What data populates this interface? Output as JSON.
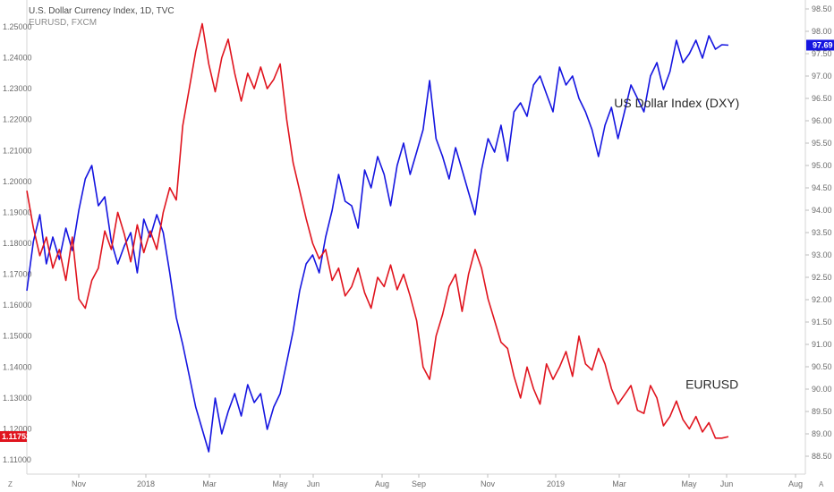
{
  "header": {
    "title": "U.S. Dollar Currency Index, 1D, TVC",
    "subtitle": "EURUSD, FXCM"
  },
  "corner_left": "Z",
  "corner_right": "A",
  "chart_data": {
    "type": "line",
    "x_ticks": [
      "Nov",
      "2018",
      "Mar",
      "May",
      "Jun",
      "Aug",
      "Sep",
      "Nov",
      "2019",
      "Mar",
      "May",
      "Jun",
      "Aug"
    ],
    "left_axis": {
      "ticks": [
        "1.25000",
        "1.24000",
        "1.23000",
        "1.22000",
        "1.21000",
        "1.20000",
        "1.19000",
        "1.18000",
        "1.17000",
        "1.16000",
        "1.15000",
        "1.14000",
        "1.13000",
        "1.12000",
        "1.11000"
      ],
      "range": [
        1.107,
        1.2585
      ],
      "last_value": "1.11752",
      "color": "#e0141e"
    },
    "right_axis": {
      "ticks": [
        "98.50",
        "98.00",
        "97.50",
        "97.00",
        "96.50",
        "96.00",
        "95.50",
        "95.00",
        "94.50",
        "94.00",
        "93.50",
        "93.00",
        "92.50",
        "92.00",
        "91.50",
        "91.00",
        "90.50",
        "90.00",
        "89.50",
        "89.00",
        "88.50"
      ],
      "range": [
        88.16,
        98.64
      ],
      "last_value": "97.69",
      "color": "#1515e0"
    },
    "series": [
      {
        "name": "US Dollar Index (DXY)",
        "axis": "right",
        "color": "#1515e0",
        "points": [
          [
            0,
            92.2
          ],
          [
            5,
            93.3
          ],
          [
            10,
            93.9
          ],
          [
            15,
            92.8
          ],
          [
            20,
            93.4
          ],
          [
            25,
            92.9
          ],
          [
            30,
            93.6
          ],
          [
            35,
            93.1
          ],
          [
            40,
            94.0
          ],
          [
            45,
            94.7
          ],
          [
            50,
            95.0
          ],
          [
            55,
            94.1
          ],
          [
            60,
            94.3
          ],
          [
            65,
            93.3
          ],
          [
            70,
            92.8
          ],
          [
            75,
            93.2
          ],
          [
            80,
            93.5
          ],
          [
            85,
            92.6
          ],
          [
            90,
            93.8
          ],
          [
            95,
            93.4
          ],
          [
            100,
            93.9
          ],
          [
            105,
            93.5
          ],
          [
            110,
            92.6
          ],
          [
            115,
            91.6
          ],
          [
            120,
            91.0
          ],
          [
            125,
            90.3
          ],
          [
            130,
            89.6
          ],
          [
            135,
            89.1
          ],
          [
            140,
            88.6
          ],
          [
            145,
            89.8
          ],
          [
            150,
            89.0
          ],
          [
            155,
            89.5
          ],
          [
            160,
            89.9
          ],
          [
            165,
            89.4
          ],
          [
            170,
            90.1
          ],
          [
            175,
            89.7
          ],
          [
            180,
            89.9
          ],
          [
            185,
            89.1
          ],
          [
            190,
            89.6
          ],
          [
            195,
            89.9
          ],
          [
            200,
            90.6
          ],
          [
            205,
            91.3
          ],
          [
            210,
            92.2
          ],
          [
            215,
            92.8
          ],
          [
            220,
            93.0
          ],
          [
            225,
            92.6
          ],
          [
            230,
            93.4
          ],
          [
            235,
            94.0
          ],
          [
            240,
            94.8
          ],
          [
            245,
            94.2
          ],
          [
            250,
            94.1
          ],
          [
            255,
            93.6
          ],
          [
            260,
            94.9
          ],
          [
            265,
            94.5
          ],
          [
            270,
            95.2
          ],
          [
            275,
            94.8
          ],
          [
            280,
            94.1
          ],
          [
            285,
            95.0
          ],
          [
            290,
            95.5
          ],
          [
            295,
            94.8
          ],
          [
            300,
            95.3
          ],
          [
            305,
            95.8
          ],
          [
            310,
            96.9
          ],
          [
            315,
            95.6
          ],
          [
            320,
            95.2
          ],
          [
            325,
            94.7
          ],
          [
            330,
            95.4
          ],
          [
            335,
            94.9
          ],
          [
            340,
            94.4
          ],
          [
            345,
            93.9
          ],
          [
            350,
            94.9
          ],
          [
            355,
            95.6
          ],
          [
            360,
            95.3
          ],
          [
            365,
            95.9
          ],
          [
            370,
            95.1
          ],
          [
            375,
            96.2
          ],
          [
            380,
            96.4
          ],
          [
            385,
            96.1
          ],
          [
            390,
            96.8
          ],
          [
            395,
            97.0
          ],
          [
            400,
            96.6
          ],
          [
            405,
            96.2
          ],
          [
            410,
            97.2
          ],
          [
            415,
            96.8
          ],
          [
            420,
            97.0
          ],
          [
            425,
            96.5
          ],
          [
            430,
            96.2
          ],
          [
            435,
            95.8
          ],
          [
            440,
            95.2
          ],
          [
            445,
            95.9
          ],
          [
            450,
            96.3
          ],
          [
            455,
            95.6
          ],
          [
            460,
            96.2
          ],
          [
            465,
            96.8
          ],
          [
            470,
            96.5
          ],
          [
            475,
            96.2
          ],
          [
            480,
            97.0
          ],
          [
            485,
            97.3
          ],
          [
            490,
            96.7
          ],
          [
            495,
            97.1
          ],
          [
            500,
            97.8
          ],
          [
            505,
            97.3
          ],
          [
            510,
            97.5
          ],
          [
            515,
            97.8
          ],
          [
            520,
            97.4
          ],
          [
            525,
            97.9
          ],
          [
            530,
            97.6
          ],
          [
            535,
            97.7
          ],
          [
            540,
            97.69
          ]
        ]
      },
      {
        "name": "EURUSD",
        "axis": "left",
        "color": "#e0141e",
        "points": [
          [
            0,
            1.197
          ],
          [
            5,
            1.185
          ],
          [
            10,
            1.176
          ],
          [
            15,
            1.182
          ],
          [
            20,
            1.172
          ],
          [
            25,
            1.178
          ],
          [
            30,
            1.168
          ],
          [
            35,
            1.182
          ],
          [
            40,
            1.162
          ],
          [
            45,
            1.159
          ],
          [
            50,
            1.168
          ],
          [
            55,
            1.172
          ],
          [
            60,
            1.184
          ],
          [
            65,
            1.178
          ],
          [
            70,
            1.19
          ],
          [
            75,
            1.183
          ],
          [
            80,
            1.174
          ],
          [
            85,
            1.186
          ],
          [
            90,
            1.177
          ],
          [
            95,
            1.184
          ],
          [
            100,
            1.178
          ],
          [
            105,
            1.19
          ],
          [
            110,
            1.198
          ],
          [
            115,
            1.194
          ],
          [
            120,
            1.218
          ],
          [
            125,
            1.23
          ],
          [
            130,
            1.242
          ],
          [
            135,
            1.251
          ],
          [
            140,
            1.238
          ],
          [
            145,
            1.229
          ],
          [
            150,
            1.24
          ],
          [
            155,
            1.246
          ],
          [
            160,
            1.235
          ],
          [
            165,
            1.226
          ],
          [
            170,
            1.235
          ],
          [
            175,
            1.23
          ],
          [
            180,
            1.237
          ],
          [
            185,
            1.23
          ],
          [
            190,
            1.233
          ],
          [
            195,
            1.238
          ],
          [
            200,
            1.22
          ],
          [
            205,
            1.206
          ],
          [
            210,
            1.197
          ],
          [
            215,
            1.188
          ],
          [
            220,
            1.18
          ],
          [
            225,
            1.175
          ],
          [
            230,
            1.178
          ],
          [
            235,
            1.168
          ],
          [
            240,
            1.172
          ],
          [
            245,
            1.163
          ],
          [
            250,
            1.166
          ],
          [
            255,
            1.172
          ],
          [
            260,
            1.164
          ],
          [
            265,
            1.159
          ],
          [
            270,
            1.169
          ],
          [
            275,
            1.166
          ],
          [
            280,
            1.173
          ],
          [
            285,
            1.165
          ],
          [
            290,
            1.17
          ],
          [
            295,
            1.163
          ],
          [
            300,
            1.155
          ],
          [
            305,
            1.14
          ],
          [
            310,
            1.136
          ],
          [
            315,
            1.15
          ],
          [
            320,
            1.157
          ],
          [
            325,
            1.166
          ],
          [
            330,
            1.17
          ],
          [
            335,
            1.158
          ],
          [
            340,
            1.17
          ],
          [
            345,
            1.178
          ],
          [
            350,
            1.172
          ],
          [
            355,
            1.162
          ],
          [
            360,
            1.155
          ],
          [
            365,
            1.148
          ],
          [
            370,
            1.146
          ],
          [
            375,
            1.137
          ],
          [
            380,
            1.13
          ],
          [
            385,
            1.14
          ],
          [
            390,
            1.133
          ],
          [
            395,
            1.128
          ],
          [
            400,
            1.141
          ],
          [
            405,
            1.136
          ],
          [
            410,
            1.14
          ],
          [
            415,
            1.145
          ],
          [
            420,
            1.137
          ],
          [
            425,
            1.15
          ],
          [
            430,
            1.141
          ],
          [
            435,
            1.139
          ],
          [
            440,
            1.146
          ],
          [
            445,
            1.141
          ],
          [
            450,
            1.133
          ],
          [
            455,
            1.128
          ],
          [
            460,
            1.131
          ],
          [
            465,
            1.134
          ],
          [
            470,
            1.126
          ],
          [
            475,
            1.125
          ],
          [
            480,
            1.134
          ],
          [
            485,
            1.13
          ],
          [
            490,
            1.121
          ],
          [
            495,
            1.124
          ],
          [
            500,
            1.129
          ],
          [
            505,
            1.123
          ],
          [
            510,
            1.12
          ],
          [
            515,
            1.124
          ],
          [
            520,
            1.119
          ],
          [
            525,
            1.122
          ],
          [
            530,
            1.117
          ],
          [
            535,
            1.117
          ],
          [
            540,
            1.1175
          ]
        ]
      }
    ],
    "annotations": [
      {
        "text": "US Dollar Index (DXY)",
        "axis": "right",
        "x": 452,
        "y": 96.3
      },
      {
        "text": "EURUSD",
        "axis": "left",
        "x": 507,
        "y": 1.133
      }
    ],
    "grid": false,
    "legend": "none"
  }
}
